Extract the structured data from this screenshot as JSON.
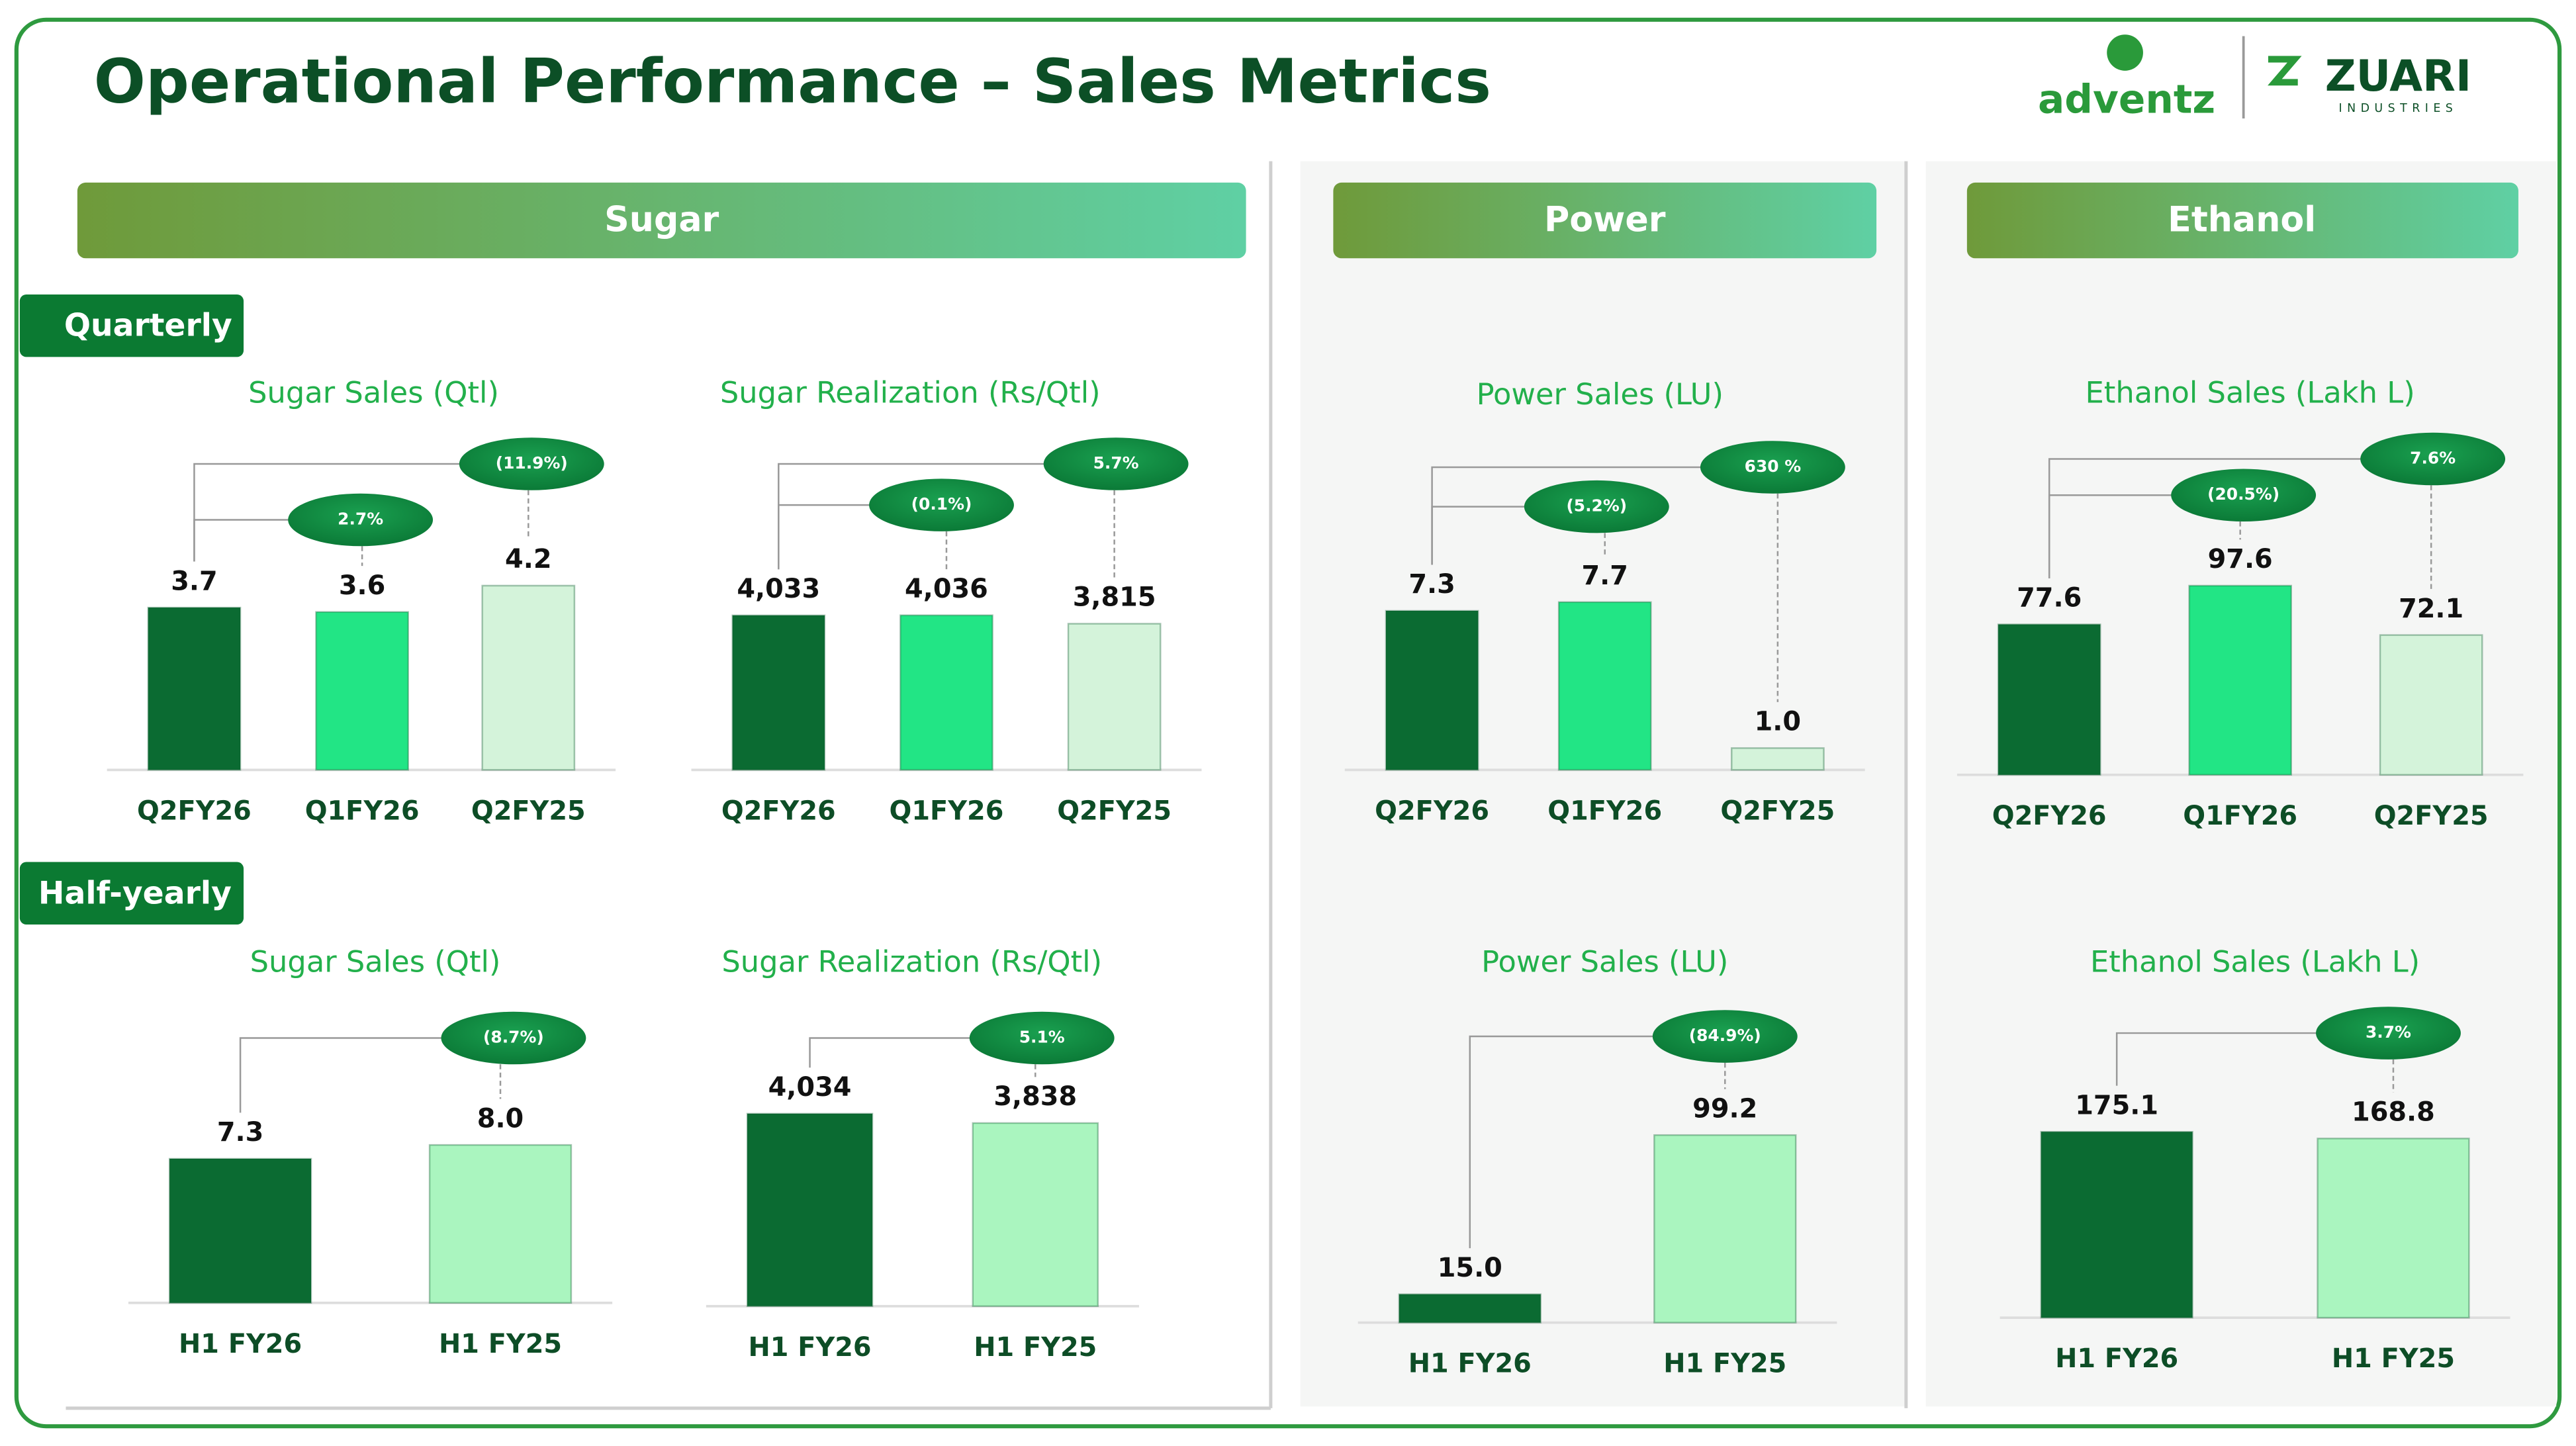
{
  "title": "Operational Performance – Sales Metrics",
  "logo": {
    "brand": "adventz",
    "company": "ZUARI",
    "tagline": "INDUSTRIES"
  },
  "sections": [
    "Sugar",
    "Power",
    "Ethanol"
  ],
  "periods": [
    "Quarterly",
    "Half-yearly"
  ],
  "chart_data": [
    {
      "type": "bar",
      "title": "Sugar Sales (Qtl)",
      "categories": [
        "Q2FY26",
        "Q1FY26",
        "Q2FY25"
      ],
      "values": [
        3.7,
        3.6,
        4.2
      ],
      "colors": [
        "#0b6b32",
        "#22e585",
        "#d4f3da"
      ],
      "annotations": [
        "2.7%",
        "(11.9%)"
      ]
    },
    {
      "type": "bar",
      "title": "Sugar Realization (Rs/Qtl)",
      "categories": [
        "Q2FY26",
        "Q1FY26",
        "Q2FY25"
      ],
      "values": [
        4033,
        4036,
        3815
      ],
      "value_labels": [
        "4,033",
        "4,036",
        "3,815"
      ],
      "colors": [
        "#0b6b32",
        "#22e585",
        "#d4f3da"
      ],
      "annotations": [
        "(0.1%)",
        "5.7%"
      ]
    },
    {
      "type": "bar",
      "title": "Power Sales (LU)",
      "categories": [
        "Q2FY26",
        "Q1FY26",
        "Q2FY25"
      ],
      "values": [
        7.3,
        7.7,
        1.0
      ],
      "value_labels": [
        "7.3",
        "7.7",
        "1.0"
      ],
      "colors": [
        "#0b6b32",
        "#22e585",
        "#d4f3da"
      ],
      "annotations": [
        "(5.2%)",
        "630 %"
      ]
    },
    {
      "type": "bar",
      "title": "Ethanol Sales (Lakh L)",
      "categories": [
        "Q2FY26",
        "Q1FY26",
        "Q2FY25"
      ],
      "values": [
        77.6,
        97.6,
        72.1
      ],
      "colors": [
        "#0b6b32",
        "#22e585",
        "#d4f3da"
      ],
      "annotations": [
        "(20.5%)",
        "7.6%"
      ]
    },
    {
      "type": "bar",
      "title": "Sugar Sales (Qtl)",
      "categories": [
        "H1 FY26",
        "H1 FY25"
      ],
      "values": [
        7.3,
        8.0
      ],
      "value_labels": [
        "7.3",
        "8.0"
      ],
      "colors": [
        "#0b6b32",
        "#aaf5bf"
      ],
      "annotations": [
        "(8.7%)"
      ]
    },
    {
      "type": "bar",
      "title": "Sugar Realization (Rs/Qtl)",
      "categories": [
        "H1 FY26",
        "H1 FY25"
      ],
      "values": [
        4034,
        3838
      ],
      "value_labels": [
        "4,034",
        "3,838"
      ],
      "colors": [
        "#0b6b32",
        "#aaf5bf"
      ],
      "annotations": [
        "5.1%"
      ]
    },
    {
      "type": "bar",
      "title": "Power Sales (LU)",
      "categories": [
        "H1 FY26",
        "H1 FY25"
      ],
      "values": [
        15.0,
        99.2
      ],
      "value_labels": [
        "15.0",
        "99.2"
      ],
      "colors": [
        "#0b6b32",
        "#aaf5bf"
      ],
      "annotations": [
        "(84.9%)"
      ]
    },
    {
      "type": "bar",
      "title": "Ethanol Sales (Lakh L)",
      "categories": [
        "H1 FY26",
        "H1 FY25"
      ],
      "values": [
        175.1,
        168.8
      ],
      "colors": [
        "#0b6b32",
        "#aaf5bf"
      ],
      "annotations": [
        "3.7%"
      ]
    }
  ]
}
